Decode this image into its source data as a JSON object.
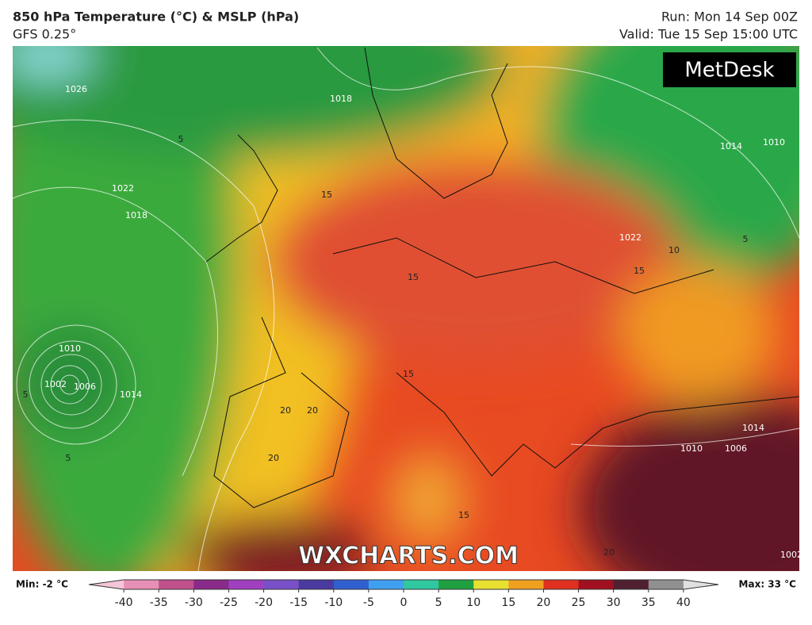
{
  "header": {
    "title": "850 hPa Temperature (°C) & MSLP (hPa)",
    "model": "GFS 0.25°",
    "run": "Run: Mon 14 Sep 00Z",
    "valid": "Valid: Tue 15 Sep 15:00 UTC"
  },
  "logo": "MetDesk",
  "watermark": "WXCHARTS.COM",
  "map": {
    "isobar_labels": [
      "1026",
      "1022",
      "1018",
      "1014",
      "1010",
      "1006",
      "1002",
      "1018",
      "1014",
      "1010",
      "1022",
      "1014",
      "1010",
      "1006",
      "1002"
    ],
    "temperature_labels": [
      "5",
      "5",
      "5",
      "15",
      "15",
      "15",
      "15",
      "20",
      "20",
      "20",
      "10",
      "5",
      "15",
      "20"
    ]
  },
  "colorbar": {
    "min_label": "Min: -2 °C",
    "max_label": "Max: 33 °C",
    "lim": [
      -45,
      45
    ],
    "ticks": [
      -40,
      -35,
      -30,
      -25,
      -20,
      -15,
      -10,
      -5,
      0,
      5,
      10,
      15,
      20,
      25,
      30,
      35,
      40
    ],
    "colors": [
      "#f5c6d8",
      "#e88fb5",
      "#c0508c",
      "#8a2a8a",
      "#a040c0",
      "#7a50c8",
      "#4a3aa0",
      "#3060d0",
      "#40a0f0",
      "#30c8a0",
      "#20a040",
      "#e8e030",
      "#f0a020",
      "#e03020",
      "#a01020",
      "#502030",
      "#909090",
      "#e0e0e0"
    ]
  }
}
